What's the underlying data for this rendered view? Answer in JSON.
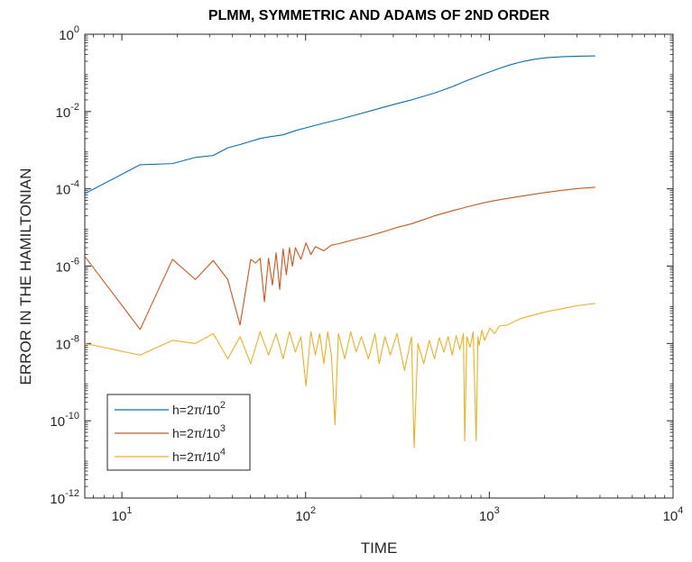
{
  "chart_data": {
    "type": "line",
    "title": "PLMM, SYMMETRIC AND ADAMS OF 2ND ORDER",
    "xlabel": "TIME",
    "ylabel": "ERROR IN THE HAMILTONIAN",
    "xscale": "log",
    "yscale": "log",
    "xlim": [
      6.2832,
      10000
    ],
    "ylim": [
      1e-12,
      1
    ],
    "x_ticks": [
      {
        "value": 10,
        "base": "10",
        "exp": "1"
      },
      {
        "value": 100,
        "base": "10",
        "exp": "2"
      },
      {
        "value": 1000,
        "base": "10",
        "exp": "3"
      },
      {
        "value": 10000,
        "base": "10",
        "exp": "4"
      }
    ],
    "y_ticks": [
      {
        "value": 1e-12,
        "base": "10",
        "exp": "-12"
      },
      {
        "value": 1e-10,
        "base": "10",
        "exp": "-10"
      },
      {
        "value": 1e-08,
        "base": "10",
        "exp": "-8"
      },
      {
        "value": 1e-06,
        "base": "10",
        "exp": "-6"
      },
      {
        "value": 0.0001,
        "base": "10",
        "exp": "-4"
      },
      {
        "value": 0.01,
        "base": "10",
        "exp": "-2"
      },
      {
        "value": 1,
        "base": "10",
        "exp": "0"
      }
    ],
    "grid": false,
    "box": true,
    "legend_position": "bottom-left",
    "series": [
      {
        "name": "h=2π/10^2",
        "legend_base": "h=2π/10",
        "legend_exp": "2",
        "color": "#0072BD",
        "x": [
          6.28,
          12.57,
          18.85,
          25.13,
          31.42,
          37.7,
          43.98,
          50.27,
          56.55,
          62.83,
          75.4,
          87.96,
          100.5,
          125.7,
          157.1,
          188.5,
          251.3,
          314.2,
          376.99,
          502.65,
          628.3,
          753.98,
          942.5,
          1130.97,
          1319.5,
          1507.96,
          1759.3,
          2010.6,
          2513.3,
          3015.9,
          3769.9
        ],
        "y": [
          7.5e-05,
          0.00042,
          0.00045,
          0.00065,
          0.00073,
          0.00115,
          0.0014,
          0.0017,
          0.002,
          0.0022,
          0.0025,
          0.0032,
          0.0038,
          0.005,
          0.0065,
          0.0082,
          0.012,
          0.016,
          0.02,
          0.03,
          0.044,
          0.063,
          0.095,
          0.13,
          0.165,
          0.195,
          0.225,
          0.245,
          0.262,
          0.27,
          0.275
        ]
      },
      {
        "name": "h=2π/10^3",
        "legend_base": "h=2π/10",
        "legend_exp": "3",
        "color": "#D95319",
        "x": [
          6.28,
          12.57,
          18.85,
          25.13,
          31.42,
          37.7,
          43.98,
          50.27,
          53.41,
          56.55,
          59.69,
          62.83,
          65.97,
          69.12,
          72.26,
          75.4,
          78.54,
          81.68,
          84.82,
          87.96,
          94.25,
          100.5,
          106.8,
          113.1,
          125.7,
          138.2,
          150.8,
          163.4,
          188.5,
          219.9,
          251.3,
          282.7,
          314.2,
          376.99,
          439.8,
          502.65,
          628.3,
          753.98,
          942.5,
          1130.97,
          1507.96,
          2010.6,
          2513.3,
          3015.9,
          3769.9
        ],
        "y": [
          1.8e-06,
          2.3e-08,
          1.5e-06,
          4.5e-07,
          1.4e-06,
          4.5e-07,
          3e-08,
          1.5e-06,
          1.2e-06,
          1.6e-06,
          1.2e-07,
          1.6e-06,
          3.2e-07,
          2.2e-06,
          2.5e-07,
          2.8e-06,
          6e-07,
          3e-06,
          1e-06,
          3e-06,
          1.5e-06,
          4e-06,
          2e-06,
          3.2e-06,
          2.5e-06,
          3.5e-06,
          3.8e-06,
          4.2e-06,
          5e-06,
          6e-06,
          7.2e-06,
          8.5e-06,
          1e-05,
          1.25e-05,
          1.6e-05,
          2e-05,
          2.7e-05,
          3.4e-05,
          4.4e-05,
          5.2e-05,
          6.5e-05,
          8e-05,
          9.2e-05,
          0.000102,
          0.00011
        ]
      },
      {
        "name": "h=2π/10^4",
        "legend_base": "h=2π/10",
        "legend_exp": "4",
        "color": "#EDB120",
        "x": [
          6.28,
          12.57,
          18.85,
          25.13,
          31.42,
          37.7,
          43.98,
          50.27,
          56.55,
          62.83,
          69.12,
          75.4,
          81.68,
          87.96,
          94.25,
          100.5,
          106.8,
          113.1,
          119.4,
          125.7,
          131.9,
          138.2,
          144.5,
          150.8,
          163.4,
          175.9,
          188.5,
          201.1,
          219.9,
          238.8,
          251.3,
          270.2,
          289.0,
          314.2,
          345.6,
          376.99,
          389.6,
          408.4,
          439.8,
          471.2,
          502.65,
          534.1,
          565.5,
          596.9,
          628.3,
          659.7,
          691.2,
          722.6,
          735.1,
          753.98,
          785.4,
          816.8,
          848.2,
          867.1,
          879.6,
          911.1,
          942.5,
          1005.3,
          1068.1,
          1130.97,
          1256.6,
          1382.3,
          1507.96,
          1759.3,
          2010.6,
          2513.3,
          3015.9,
          3769.9
        ],
        "y": [
          1e-08,
          5e-09,
          1.2e-08,
          1e-08,
          1.8e-08,
          4e-09,
          1.5e-08,
          3e-09,
          2e-08,
          5e-09,
          1.8e-08,
          4e-09,
          2e-08,
          6e-09,
          1.5e-08,
          8e-10,
          2e-08,
          5e-09,
          1.8e-08,
          3e-09,
          2e-08,
          5e-09,
          8e-11,
          1.8e-08,
          4e-09,
          2e-08,
          6e-09,
          1.5e-08,
          4e-09,
          1.8e-08,
          3e-09,
          1.5e-08,
          5e-09,
          1.8e-08,
          2e-09,
          1.5e-08,
          2e-11,
          1e-08,
          3e-09,
          1.2e-08,
          4e-09,
          1.4e-08,
          6e-09,
          1.5e-08,
          5e-09,
          1.6e-08,
          7e-09,
          1.8e-08,
          3e-11,
          1.5e-08,
          8e-09,
          2e-08,
          3e-11,
          1.5e-08,
          9e-09,
          2.2e-08,
          1.2e-08,
          2.5e-08,
          1.8e-08,
          2.8e-08,
          3e-08,
          3.8e-08,
          4.5e-08,
          5.5e-08,
          6.5e-08,
          8e-08,
          9.5e-08,
          1.08e-07
        ]
      }
    ]
  }
}
